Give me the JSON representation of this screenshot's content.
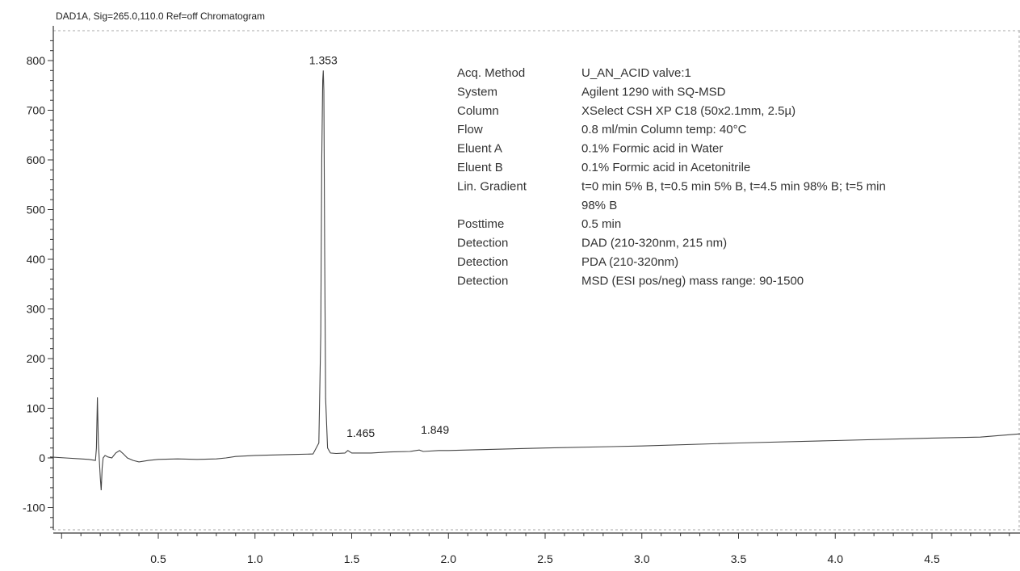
{
  "chart_data": {
    "type": "line",
    "title": "DAD1A, Sig=265.0,110.0  Ref=off Chromatogram",
    "xlabel": "",
    "ylabel": "",
    "xlim": [
      -0.06,
      5.0
    ],
    "ylim": [
      -150,
      850
    ],
    "x_ticks": [
      0.5,
      1.0,
      1.5,
      2.0,
      2.5,
      3.0,
      3.5,
      4.0,
      4.5
    ],
    "x_tick_labels": [
      "0.5",
      "1.0",
      "1.5",
      "2.0",
      "2.5",
      "3.0",
      "3.5",
      "4.0",
      "4.5"
    ],
    "y_ticks": [
      -100,
      0,
      100,
      200,
      300,
      400,
      500,
      600,
      700,
      800
    ],
    "y_tick_labels": [
      "-100",
      "0",
      "100",
      "200",
      "300",
      "400",
      "500",
      "600",
      "700",
      "800"
    ],
    "grid": false,
    "series": [
      {
        "x": [
          -0.06,
          0.02,
          0.1,
          0.14,
          0.175,
          0.18,
          0.185,
          0.19,
          0.2,
          0.205,
          0.21,
          0.215,
          0.225,
          0.24,
          0.26,
          0.28,
          0.3,
          0.32,
          0.34,
          0.37,
          0.4,
          0.45,
          0.5,
          0.6,
          0.7,
          0.8,
          0.85,
          0.9,
          1.0,
          1.1,
          1.2,
          1.3,
          1.33,
          1.34,
          1.345,
          1.35,
          1.353,
          1.356,
          1.36,
          1.365,
          1.375,
          1.39,
          1.42,
          1.465,
          1.48,
          1.5,
          1.6,
          1.7,
          1.8,
          1.849,
          1.87,
          1.95,
          2.0,
          2.5,
          3.0,
          3.5,
          4.0,
          4.5,
          4.75,
          5.0
        ],
        "values": [
          2,
          0,
          -2,
          -3,
          -5,
          20,
          122,
          30,
          -40,
          -65,
          -20,
          0,
          5,
          2,
          0,
          10,
          15,
          8,
          0,
          -5,
          -8,
          -5,
          -3,
          -2,
          -3,
          -2,
          0,
          3,
          5,
          6,
          7,
          8,
          30,
          250,
          600,
          760,
          780,
          740,
          420,
          120,
          20,
          10,
          9,
          10,
          15,
          10,
          10,
          12,
          13,
          16,
          13,
          15,
          15,
          20,
          24,
          30,
          35,
          40,
          42,
          50
        ]
      }
    ],
    "peak_labels": [
      {
        "x": 1.353,
        "y": 780,
        "text": "1.353"
      },
      {
        "x": 1.465,
        "y": 10,
        "text": "1.465"
      },
      {
        "x": 1.849,
        "y": 16,
        "text": "1.849"
      }
    ],
    "info_table": [
      {
        "label": "Acq. Method",
        "value": "U_AN_ACID valve:1"
      },
      {
        "label": "System",
        "value": "Agilent 1290 with SQ-MSD"
      },
      {
        "label": "Column",
        "value": "XSelect CSH XP C18 (50x2.1mm, 2.5µ)"
      },
      {
        "label": "Flow",
        "value": "0.8 ml/min Column temp: 40°C"
      },
      {
        "label": "Eluent A",
        "value": "0.1% Formic acid in Water"
      },
      {
        "label": "Eluent B",
        "value": "0.1% Formic acid in Acetonitrile"
      },
      {
        "label": "Lin. Gradient",
        "value": "t=0 min 5% B, t=0.5 min 5% B, t=4.5 min 98% B; t=5 min",
        "value2": "98% B"
      },
      {
        "label": "Posttime",
        "value": "0.5 min"
      },
      {
        "label": "Detection",
        "value": "DAD (210-320nm, 215 nm)"
      },
      {
        "label": "Detection",
        "value": "PDA (210-320nm)"
      },
      {
        "label": "Detection",
        "value": "MSD (ESI pos/neg) mass range: 90-1500"
      }
    ],
    "colors": {
      "trace": "#444444",
      "axis": "#333333"
    }
  }
}
